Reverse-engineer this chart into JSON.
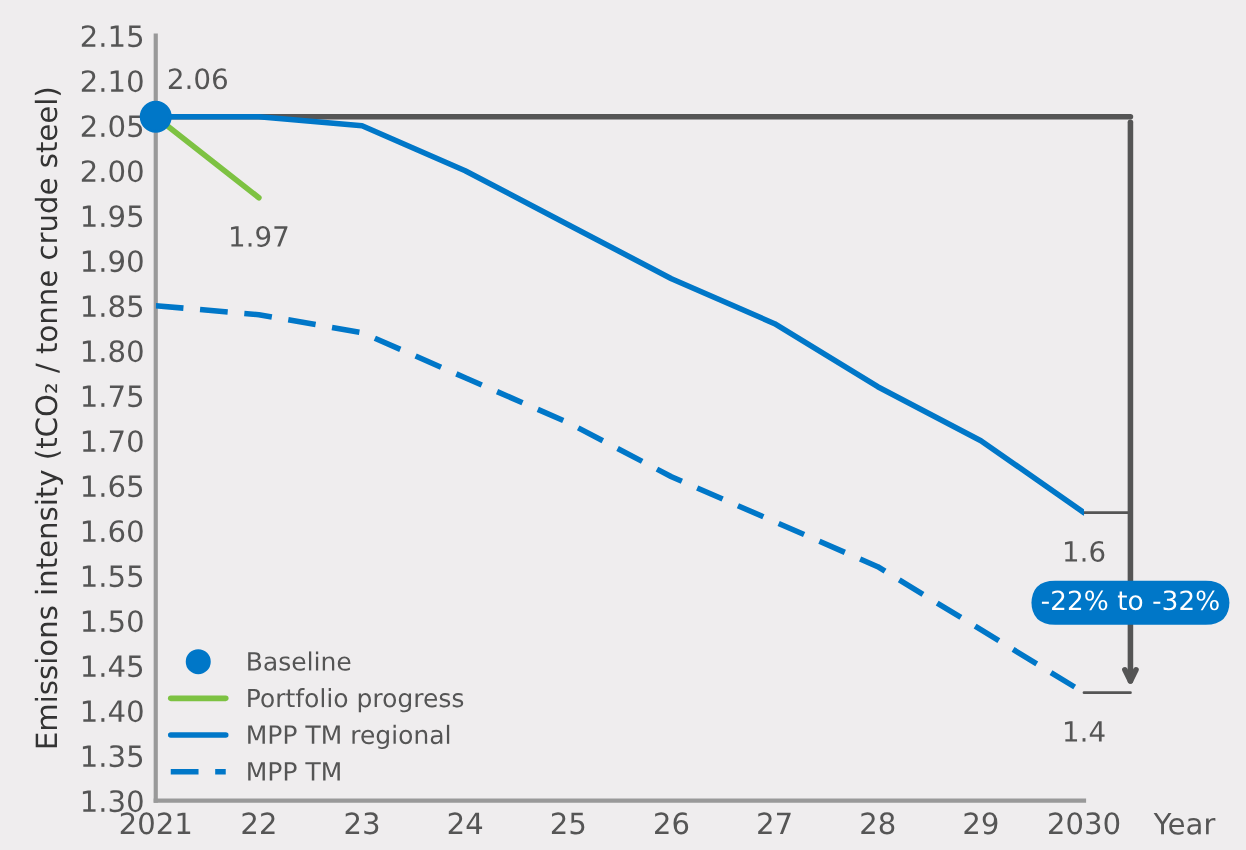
{
  "chart_data": {
    "type": "line",
    "xlabel": "Year",
    "ylabel": "Emissions intensity (tCO₂ / tonne crude steel)",
    "x": [
      2021,
      2022,
      2023,
      2024,
      2025,
      2026,
      2027,
      2028,
      2029,
      2030
    ],
    "xlim": [
      2021,
      2030
    ],
    "xticks": [
      2021,
      {
        "value": 2022,
        "label": "22"
      },
      {
        "value": 2023,
        "label": "23"
      },
      {
        "value": 2024,
        "label": "24"
      },
      {
        "value": 2025,
        "label": "25"
      },
      {
        "value": 2026,
        "label": "26"
      },
      {
        "value": 2027,
        "label": "27"
      },
      {
        "value": 2028,
        "label": "28"
      },
      {
        "value": 2029,
        "label": "29"
      },
      2030
    ],
    "ylim": [
      1.3,
      2.15
    ],
    "yticks": [
      {
        "value": 1.3,
        "label": "1.30"
      },
      1.35,
      {
        "value": 1.4,
        "label": "1.40"
      },
      1.45,
      {
        "value": 1.5,
        "label": "1.50"
      },
      1.55,
      {
        "value": 1.6,
        "label": "1.60"
      },
      1.65,
      {
        "value": 1.7,
        "label": "1.70"
      },
      1.75,
      {
        "value": 1.8,
        "label": "1.80"
      },
      1.85,
      {
        "value": 1.9,
        "label": "1.90"
      },
      1.95,
      {
        "value": 2.0,
        "label": "2.00"
      },
      2.05,
      {
        "value": 2.1,
        "label": "2.10"
      },
      2.15
    ],
    "series": [
      {
        "name": "Baseline",
        "type": "scatter",
        "marker": "circle",
        "color": "#0077c8",
        "values": [
          2.06,
          null,
          null,
          null,
          null,
          null,
          null,
          null,
          null,
          null
        ],
        "value_labels": [
          "2.06",
          null,
          null,
          null,
          null,
          null,
          null,
          null,
          null,
          null
        ]
      },
      {
        "name": "Portfolio progress",
        "color": "#7dc242",
        "line_style": "solid",
        "values": [
          2.06,
          1.97,
          null,
          null,
          null,
          null,
          null,
          null,
          null,
          null
        ],
        "value_labels": [
          null,
          "1.97",
          null,
          null,
          null,
          null,
          null,
          null,
          null,
          null
        ]
      },
      {
        "name": "MPP TM regional",
        "color": "#0077c8",
        "line_style": "solid",
        "values": [
          2.06,
          2.06,
          2.05,
          2.0,
          1.94,
          1.88,
          1.83,
          1.76,
          1.7,
          1.62
        ],
        "value_labels": [
          null,
          null,
          null,
          null,
          null,
          null,
          null,
          null,
          null,
          "1.6"
        ]
      },
      {
        "name": "MPP TM",
        "color": "#0077c8",
        "line_style": "dashed",
        "values": [
          1.85,
          1.84,
          1.82,
          1.77,
          1.72,
          1.66,
          1.61,
          1.56,
          1.49,
          1.42
        ],
        "value_labels": [
          null,
          null,
          null,
          null,
          null,
          null,
          null,
          null,
          null,
          "1.4"
        ]
      }
    ],
    "ref_lines": [
      {
        "axis": "y",
        "value": 2.06,
        "color": "#555555"
      }
    ],
    "annotations": [
      "-22% to -32%"
    ],
    "grid": false,
    "legend": "bottom left",
    "marker": "none"
  }
}
